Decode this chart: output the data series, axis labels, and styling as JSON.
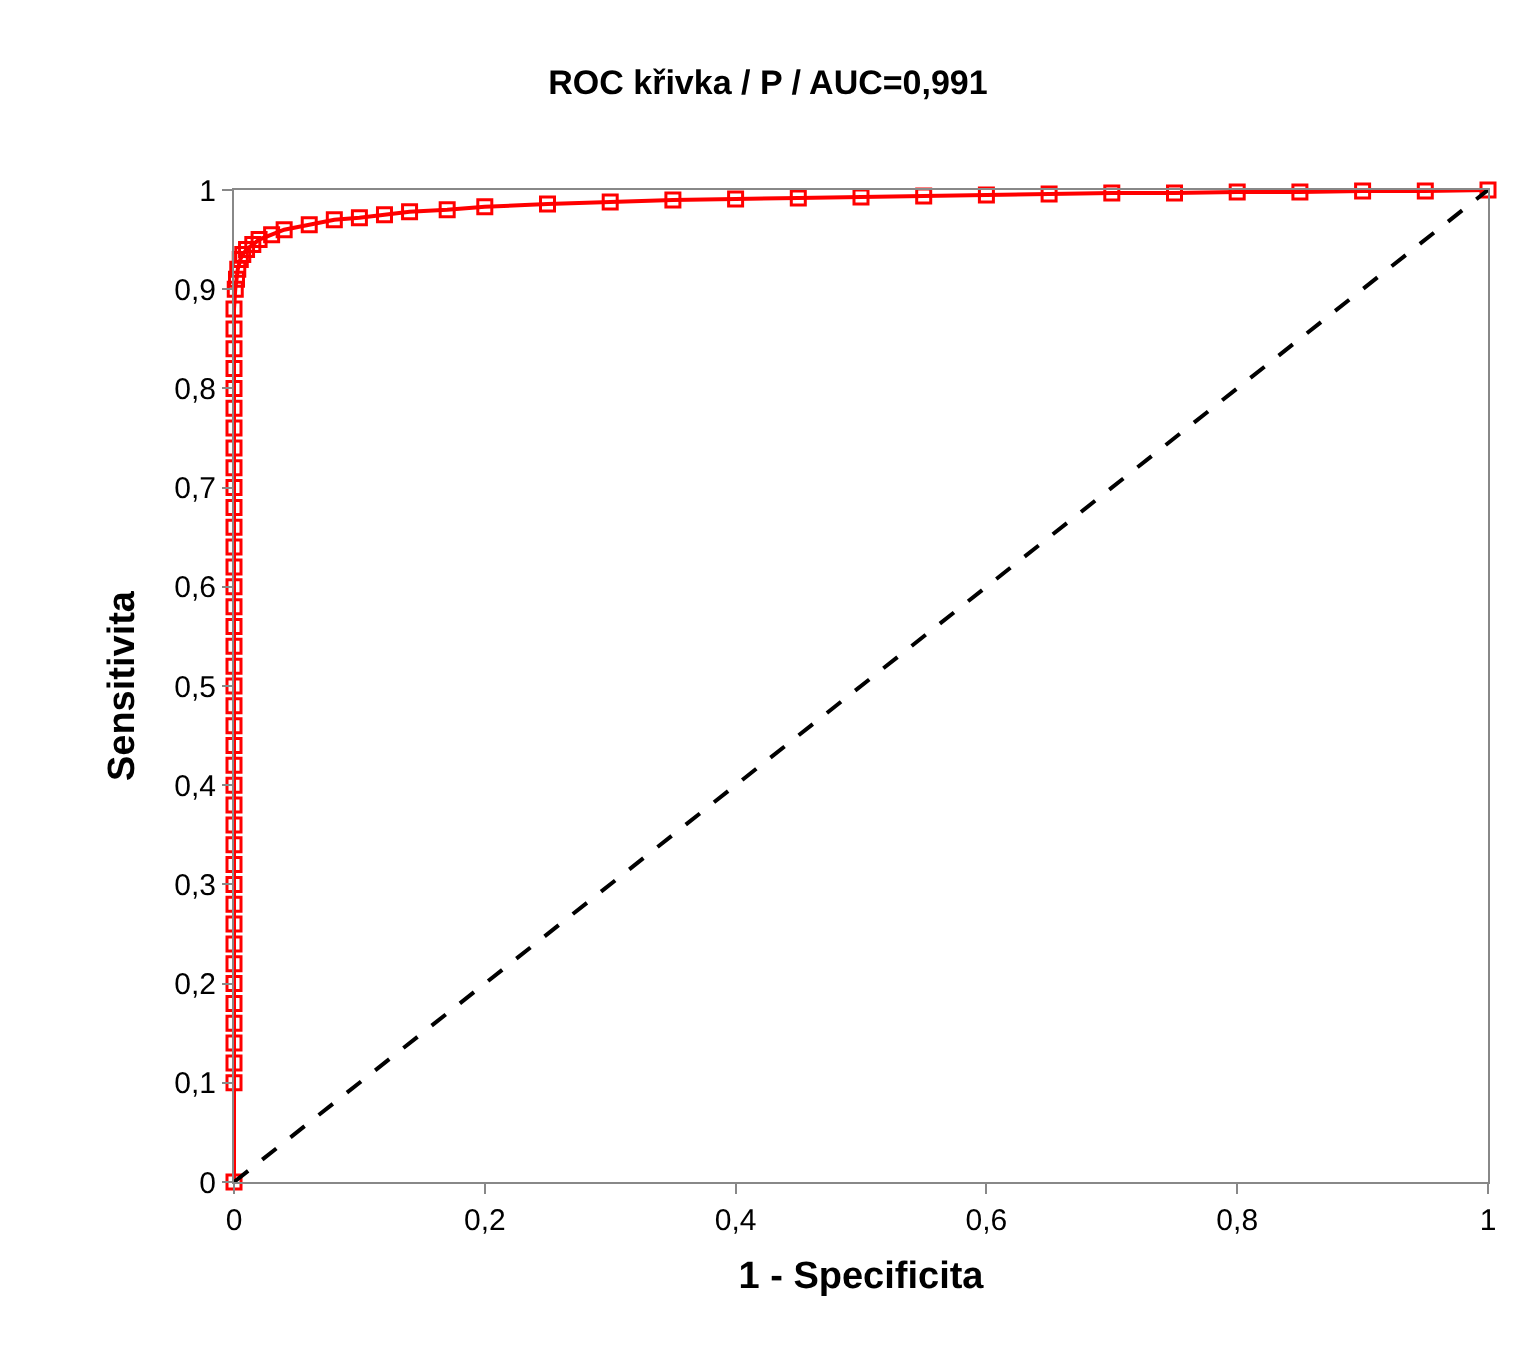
{
  "chart_data": {
    "type": "line",
    "title": "ROC křivka / P / AUC=0,991",
    "xlabel": "1 - Specificita",
    "ylabel": "Sensitivita",
    "xlim": [
      0,
      1
    ],
    "ylim": [
      0,
      1
    ],
    "xticks": [
      0,
      {
        "value": 0.2,
        "label": "0,2"
      },
      {
        "value": 0.4,
        "label": "0,4"
      },
      {
        "value": 0.6,
        "label": "0,6"
      },
      {
        "value": 0.8,
        "label": "0,8"
      },
      1
    ],
    "yticks": [
      0,
      {
        "value": 0.1,
        "label": "0,1"
      },
      {
        "value": 0.2,
        "label": "0,2"
      },
      {
        "value": 0.3,
        "label": "0,3"
      },
      {
        "value": 0.4,
        "label": "0,4"
      },
      {
        "value": 0.5,
        "label": "0,5"
      },
      {
        "value": 0.6,
        "label": "0,6"
      },
      {
        "value": 0.7,
        "label": "0,7"
      },
      {
        "value": 0.8,
        "label": "0,8"
      },
      {
        "value": 0.9,
        "label": "0,9"
      },
      1
    ],
    "series": [
      {
        "color": "#ff0000",
        "marker": "square",
        "line_style": "solid",
        "x": [
          0,
          0,
          0,
          0,
          0,
          0,
          0,
          0,
          0,
          0,
          0,
          0,
          0,
          0,
          0,
          0,
          0,
          0,
          0,
          0,
          0,
          0,
          0,
          0,
          0,
          0,
          0,
          0,
          0,
          0,
          0,
          0,
          0,
          0,
          0,
          0,
          0,
          0,
          0,
          0,
          0,
          0.001,
          0.002,
          0.003,
          0.005,
          0.007,
          0.01,
          0.015,
          0.02,
          0.03,
          0.04,
          0.06,
          0.08,
          0.1,
          0.12,
          0.14,
          0.17,
          0.2,
          0.25,
          0.3,
          0.35,
          0.4,
          0.45,
          0.5,
          0.55,
          0.6,
          0.65,
          0.7,
          0.75,
          0.8,
          0.85,
          0.9,
          0.95,
          1
        ],
        "values": [
          0,
          0.1,
          0.12,
          0.14,
          0.16,
          0.18,
          0.2,
          0.22,
          0.24,
          0.26,
          0.28,
          0.3,
          0.32,
          0.34,
          0.36,
          0.38,
          0.4,
          0.42,
          0.44,
          0.46,
          0.48,
          0.5,
          0.52,
          0.54,
          0.56,
          0.58,
          0.6,
          0.62,
          0.64,
          0.66,
          0.68,
          0.7,
          0.72,
          0.74,
          0.76,
          0.78,
          0.8,
          0.82,
          0.84,
          0.86,
          0.88,
          0.9,
          0.91,
          0.92,
          0.93,
          0.935,
          0.94,
          0.945,
          0.95,
          0.955,
          0.96,
          0.965,
          0.97,
          0.972,
          0.975,
          0.978,
          0.98,
          0.983,
          0.986,
          0.988,
          0.99,
          0.991,
          0.992,
          0.993,
          0.994,
          0.995,
          0.996,
          0.997,
          0.997,
          0.998,
          0.998,
          0.999,
          0.999,
          1
        ]
      },
      {
        "color": "#000000",
        "marker": "none",
        "line_style": "dashed",
        "x": [
          0,
          1
        ],
        "values": [
          0,
          1
        ]
      }
    ]
  }
}
